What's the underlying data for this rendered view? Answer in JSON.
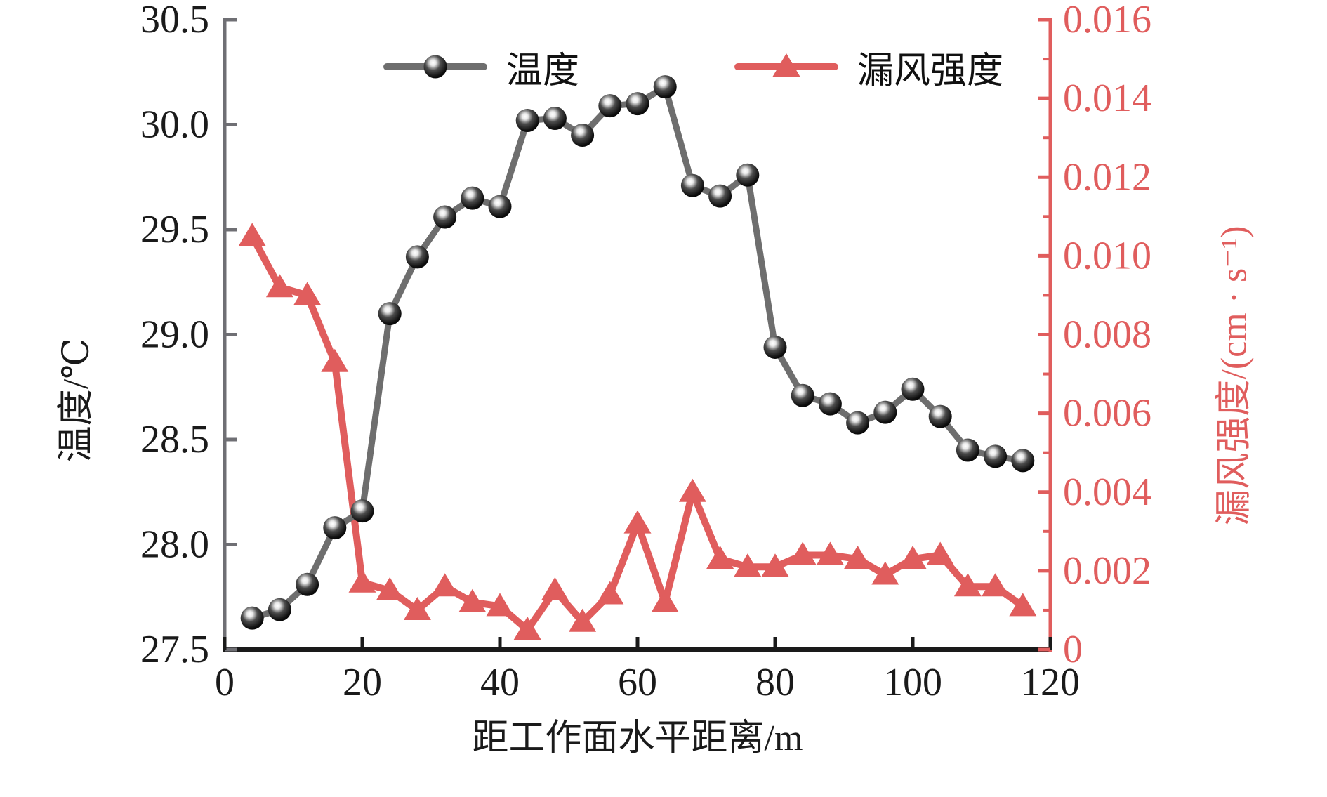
{
  "chart_data": {
    "type": "line",
    "x": [
      4,
      8,
      12,
      16,
      20,
      24,
      28,
      32,
      36,
      40,
      44,
      48,
      52,
      56,
      60,
      64,
      68,
      72,
      76,
      80,
      84,
      88,
      92,
      96,
      100,
      104,
      108,
      112,
      116
    ],
    "series": [
      {
        "name": "温度",
        "axis": "left",
        "marker": "sphere",
        "color": "#6e6e6e",
        "line_width": 9,
        "values": [
          27.65,
          27.69,
          27.81,
          28.08,
          28.16,
          29.1,
          29.37,
          29.56,
          29.65,
          29.61,
          30.02,
          30.03,
          29.95,
          30.09,
          30.1,
          30.18,
          29.71,
          29.66,
          29.76,
          28.94,
          28.71,
          28.67,
          28.58,
          28.63,
          28.74,
          28.61,
          28.45,
          28.42,
          28.4
        ]
      },
      {
        "name": "漏风强度",
        "axis": "right",
        "marker": "triangle",
        "color": "#e05d5d",
        "line_width": 10,
        "values": [
          0.0105,
          0.0092,
          0.009,
          0.0073,
          0.0017,
          0.0015,
          0.001,
          0.0016,
          0.0012,
          0.0011,
          0.0005,
          0.0015,
          0.0007,
          0.0014,
          0.0032,
          0.0012,
          0.004,
          0.0023,
          0.0021,
          0.0021,
          0.0024,
          0.0024,
          0.0023,
          0.0019,
          0.0023,
          0.0024,
          0.0016,
          0.0016,
          0.0011
        ]
      }
    ],
    "title": "",
    "xlabel": "距工作面水平距离/m",
    "ylabel_left": "温度/℃",
    "ylabel_right": "漏风强度/(cm · s⁻¹)",
    "x_ticks": [
      "0",
      "20",
      "40",
      "60",
      "80",
      "100",
      "120"
    ],
    "y_left_ticks": [
      "27.5",
      "28.0",
      "28.5",
      "29.0",
      "29.5",
      "30.0",
      "30.5"
    ],
    "y_right_ticks": [
      "0",
      "0.002",
      "0.004",
      "0.006",
      "0.008",
      "0.010",
      "0.012",
      "0.014",
      "0.016"
    ],
    "x_range": [
      0,
      120
    ],
    "y_left_range": [
      27.5,
      30.5
    ],
    "y_right_range": [
      0,
      0.016
    ],
    "grid": false,
    "legend": {
      "position": "top",
      "items": [
        "温度",
        "漏风强度"
      ]
    },
    "colors": {
      "temperature_line": "#6e6e6e",
      "leakage_line": "#e05d5d",
      "axis_left": "#6f6f74",
      "axis_bottom": "#1a1a1a",
      "axis_right": "#e05d5d",
      "tick_label_dark": "#1a1a1a",
      "tick_label_red": "#e05d5d"
    }
  }
}
